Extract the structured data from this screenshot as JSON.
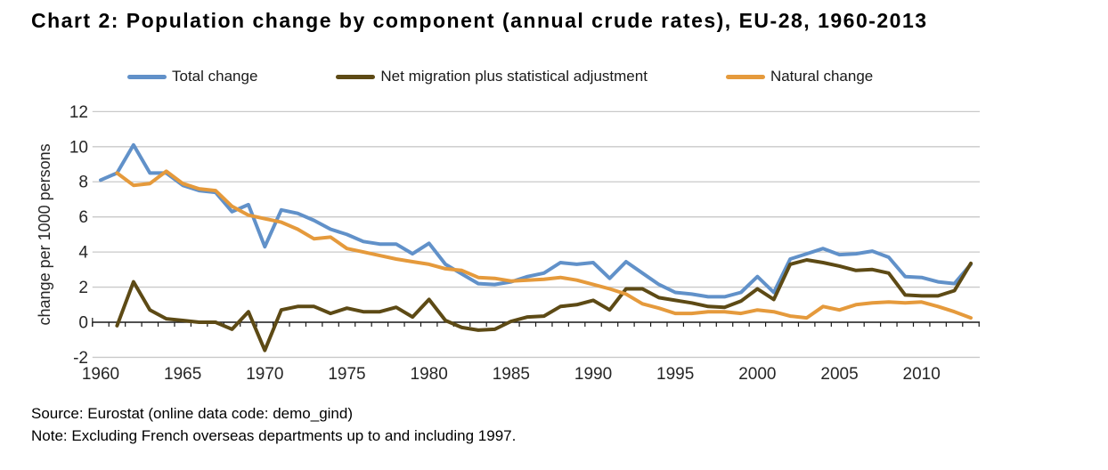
{
  "title": "Chart 2: Population change by component (annual crude rates), EU-28, 1960-2013",
  "legend": [
    {
      "label": "Total change",
      "color": "#6191C9"
    },
    {
      "label": "Net migration plus statistical adjustment",
      "color": "#5D4A15"
    },
    {
      "label": "Natural change",
      "color": "#E59A3C"
    }
  ],
  "footer": {
    "source": "Source: Eurostat (online data code: demo_gind)",
    "note": "Note: Excluding French overseas departments up to and including 1997."
  },
  "chart_data": {
    "type": "line",
    "title": "Chart 2: Population change by component (annual crude rates), EU-28, 1960-2013",
    "xlabel": "",
    "ylabel": "change per 1000 persons",
    "ylim": [
      -2,
      12
    ],
    "grid": true,
    "legend_position": "top",
    "y_ticks": [
      12,
      10,
      8,
      6,
      4,
      2,
      0,
      -2
    ],
    "x_tick_labels": [
      "1960",
      "1965",
      "1970",
      "1975",
      "1980",
      "1985",
      "1990",
      "1995",
      "2000",
      "2005",
      "2010"
    ],
    "x": [
      1960,
      1961,
      1962,
      1963,
      1964,
      1965,
      1966,
      1967,
      1968,
      1969,
      1970,
      1971,
      1972,
      1973,
      1974,
      1975,
      1976,
      1977,
      1978,
      1979,
      1980,
      1981,
      1982,
      1983,
      1984,
      1985,
      1986,
      1987,
      1988,
      1989,
      1990,
      1991,
      1992,
      1993,
      1994,
      1995,
      1996,
      1997,
      1998,
      1999,
      2000,
      2001,
      2002,
      2003,
      2004,
      2005,
      2006,
      2007,
      2008,
      2009,
      2010,
      2011,
      2012,
      2013
    ],
    "series": [
      {
        "name": "Total change",
        "color": "#6191C9",
        "values": [
          8.1,
          8.5,
          10.1,
          8.5,
          8.5,
          7.8,
          7.5,
          7.4,
          6.3,
          6.7,
          4.3,
          6.4,
          6.2,
          5.8,
          5.3,
          5.0,
          4.6,
          4.45,
          4.45,
          3.9,
          4.5,
          3.3,
          2.75,
          2.2,
          2.15,
          2.3,
          2.6,
          2.8,
          3.4,
          3.3,
          3.4,
          2.5,
          3.45,
          2.8,
          2.15,
          1.7,
          1.6,
          1.45,
          1.45,
          1.7,
          2.6,
          1.7,
          3.6,
          3.9,
          4.2,
          3.85,
          3.9,
          4.05,
          3.7,
          2.6,
          2.55,
          2.3,
          2.2,
          3.3
        ]
      },
      {
        "name": "Net migration plus statistical adjustment",
        "color": "#5D4A15",
        "values": [
          null,
          -0.2,
          2.3,
          0.7,
          0.2,
          0.1,
          0.0,
          0.0,
          -0.4,
          0.6,
          -1.6,
          0.7,
          0.9,
          0.9,
          0.5,
          0.8,
          0.6,
          0.6,
          0.85,
          0.3,
          1.3,
          0.1,
          -0.3,
          -0.45,
          -0.4,
          0.05,
          0.3,
          0.35,
          0.9,
          1.0,
          1.25,
          0.7,
          1.9,
          1.9,
          1.4,
          1.25,
          1.1,
          0.9,
          0.85,
          1.2,
          1.9,
          1.3,
          3.3,
          3.55,
          3.4,
          3.2,
          2.95,
          3.0,
          2.8,
          1.55,
          1.5,
          1.5,
          1.8,
          3.35
        ]
      },
      {
        "name": "Natural change",
        "color": "#E59A3C",
        "values": [
          null,
          8.5,
          7.8,
          7.9,
          8.6,
          7.9,
          7.6,
          7.5,
          6.6,
          6.1,
          5.9,
          5.7,
          5.3,
          4.75,
          4.85,
          4.2,
          4.0,
          3.8,
          3.6,
          3.45,
          3.3,
          3.05,
          2.95,
          2.55,
          2.5,
          2.35,
          2.4,
          2.45,
          2.55,
          2.4,
          2.15,
          1.9,
          1.6,
          1.05,
          0.8,
          0.5,
          0.5,
          0.6,
          0.6,
          0.5,
          0.7,
          0.6,
          0.35,
          0.25,
          0.9,
          0.7,
          1.0,
          1.1,
          1.15,
          1.1,
          1.15,
          0.9,
          0.6,
          0.25
        ]
      }
    ]
  }
}
